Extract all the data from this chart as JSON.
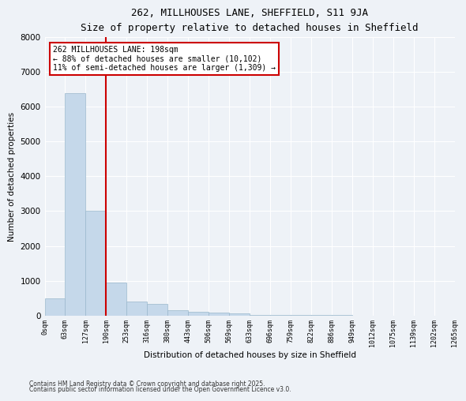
{
  "title": "262, MILLHOUSES LANE, SHEFFIELD, S11 9JA",
  "subtitle": "Size of property relative to detached houses in Sheffield",
  "xlabel": "Distribution of detached houses by size in Sheffield",
  "ylabel": "Number of detached properties",
  "bar_color": "#c5d8ea",
  "bar_edgecolor": "#9ab8cc",
  "background_color": "#eef2f7",
  "plot_bg_color": "#eef2f7",
  "grid_color": "#ffffff",
  "tick_labels": [
    "0sqm",
    "63sqm",
    "127sqm",
    "190sqm",
    "253sqm",
    "316sqm",
    "380sqm",
    "443sqm",
    "506sqm",
    "569sqm",
    "633sqm",
    "696sqm",
    "759sqm",
    "822sqm",
    "886sqm",
    "949sqm",
    "1012sqm",
    "1075sqm",
    "1139sqm",
    "1202sqm",
    "1265sqm"
  ],
  "bar_values": [
    480,
    6400,
    3000,
    950,
    400,
    340,
    150,
    100,
    75,
    50,
    20,
    10,
    5,
    3,
    2,
    1,
    1,
    1,
    0,
    0
  ],
  "property_line_x": 3,
  "property_line_color": "#cc0000",
  "annotation_title": "262 MILLHOUSES LANE: 198sqm",
  "annotation_line1": "← 88% of detached houses are smaller (10,102)",
  "annotation_line2": "11% of semi-detached houses are larger (1,309) →",
  "annotation_box_edgecolor": "#cc0000",
  "ylim": [
    0,
    8000
  ],
  "yticks": [
    0,
    1000,
    2000,
    3000,
    4000,
    5000,
    6000,
    7000,
    8000
  ],
  "footer1": "Contains HM Land Registry data © Crown copyright and database right 2025.",
  "footer2": "Contains public sector information licensed under the Open Government Licence v3.0."
}
